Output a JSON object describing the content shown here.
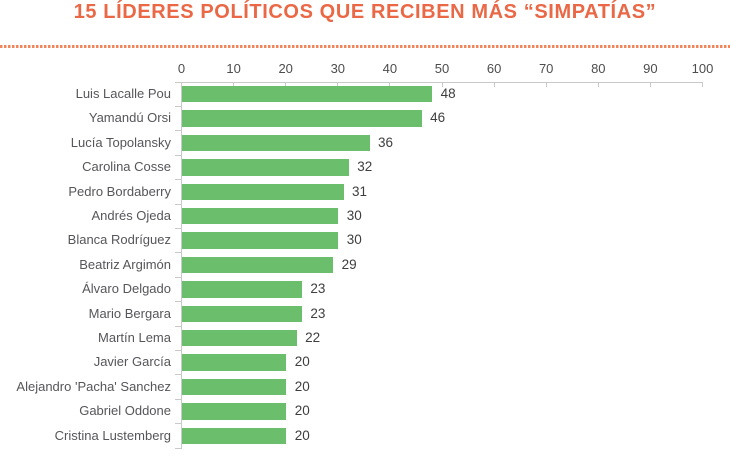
{
  "title": "15 LÍDERES POLÍTICOS QUE RECIBEN MÁS “SIMPATÍAS”",
  "colors": {
    "accent_orange": "#EA6845",
    "dotted_orange": "#F0875C",
    "bar_green": "#6BBE6B",
    "axis_gray": "#C9C9C9",
    "label_gray": "#56565A"
  },
  "chart_data": {
    "type": "bar",
    "orientation": "horizontal",
    "title": "15 LÍDERES POLÍTICOS QUE RECIBEN MÁS “SIMPATÍAS”",
    "categories": [
      "Luis Lacalle Pou",
      "Yamandú Orsi",
      "Lucía Topolansky",
      "Carolina Cosse",
      "Pedro Bordaberry",
      "Andrés Ojeda",
      "Blanca Rodríguez",
      "Beatriz Argimón",
      "Álvaro Delgado",
      "Mario Bergara",
      "Martín Lema",
      "Javier García",
      "Alejandro 'Pacha' Sanchez",
      "Gabriel Oddone",
      "Cristina Lustemberg"
    ],
    "values": [
      48,
      46,
      36,
      32,
      31,
      30,
      30,
      29,
      23,
      23,
      22,
      20,
      20,
      20,
      20
    ],
    "xlabel": "",
    "ylabel": "",
    "xlim": [
      0,
      100
    ],
    "x_ticks": [
      0,
      10,
      20,
      30,
      40,
      50,
      60,
      70,
      80,
      90,
      100
    ],
    "grid": false,
    "legend": false,
    "value_labels_shown": true,
    "bar_color": "#6BBE6B"
  }
}
